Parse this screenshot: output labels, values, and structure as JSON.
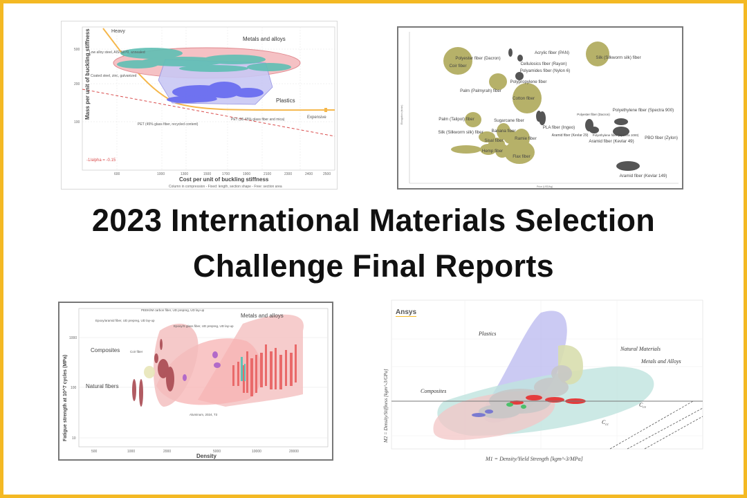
{
  "page": {
    "title_line1": "2023 International Materials Selection",
    "title_line2": "Challenge Final Reports",
    "border_color": "#f4b923"
  },
  "chart_top_left": {
    "ylabel": "Mass per unit of buckling stiffness",
    "xlabel": "Cost per unit of buckling stiffness",
    "x_caption": "Column in compression - Fixed: length, section shape - Free: section area",
    "label_heavy": "Heavy",
    "label_metals": "Metals and alloys",
    "label_plastics": "Plastics",
    "label_expensive": "Expensive",
    "note_steel": "Low alloy steel, AISI 5070, annealed",
    "note_coated": "Coated steel, zinc, galvanized",
    "note_pet": "PET (45% glass fiber, recycled content)",
    "note_pet2": "PET (35-45% glass fiber and mica)",
    "slope_label": "-1/alpha = -0.15",
    "x_ticks": [
      "600",
      "1000",
      "1300",
      "1500",
      "1700",
      "1900",
      "2100",
      "2300",
      "2400",
      "2500"
    ],
    "y_ticks": [
      "500",
      "200",
      "100"
    ]
  },
  "chart_top_right": {
    "ylabel": "Elongation (strain)",
    "xlabel": "Price (USD/kg)",
    "labels": [
      "Acrylic fiber (PAN)",
      "Polyester fiber (Dacron)",
      "Cellulosics fiber (Rayon)",
      "Polyamides fiber (Nylon 6)",
      "Silk (Silkworm silk) fiber",
      "Coir fiber",
      "Polypropylene fiber",
      "Palm (Palmyrah) fiber",
      "Cotton fiber",
      "Polyethylene fiber (Spectra 900)",
      "Polyester fiber (Dacron)",
      "Palm (Talipot) fiber",
      "Sugarcane fiber",
      "PLA fiber (Ingeo)",
      "Silk (Silkworm silk) fiber",
      "Banana fiber",
      "Aramid fiber (Kevlar 29)",
      "Polyethylene fiber (Spectra 1000)",
      "Ramie fiber",
      "Sisal fiber",
      "Aramid fiber (Kevlar 49)",
      "PBO fiber (Zylon)",
      "Hemp fiber",
      "Flax fiber",
      "Aramid fiber (Kevlar 149)"
    ]
  },
  "chart_bottom_left": {
    "ylabel": "Fatigue strength at 10^7 cycles (MPa)",
    "xlabel": "Density",
    "label_metals": "Metals and alloys",
    "label_composites": "Composites",
    "label_natural": "Natural fibers",
    "note_peek": "PEEK/IM carbon fiber, UD prepreg, UD lay-up",
    "note_epoxy_aramid": "Epoxy/aramid fiber, UD prepreg, UD lay-up",
    "note_epoxy_s": "Epoxy/S glass fiber, UD prepreg, UD lay-up",
    "note_coir": "Coir fiber",
    "note_al": "Aluminum, 2024, T3",
    "y_ticks": [
      "1000",
      "100",
      "10"
    ],
    "x_ticks": [
      "500",
      "1000",
      "2000",
      "5000",
      "10000",
      "20000"
    ]
  },
  "chart_bottom_right": {
    "logo": "Ansys",
    "ylabel": "M2 = Density/Stiffness [kgm^-3/GPa]",
    "xlabel": "M1 = Density/Yield Strength [kgm^-3/MPa]",
    "label_plastics": "Plastics",
    "label_natural": "Natural Materials",
    "label_metals": "Metals and Alloys",
    "label_composites": "Composites",
    "label_ccv": "C",
    "label_ccv_sub": "cv",
    "label_ccc": "C",
    "label_ccc_sub": "cc"
  }
}
